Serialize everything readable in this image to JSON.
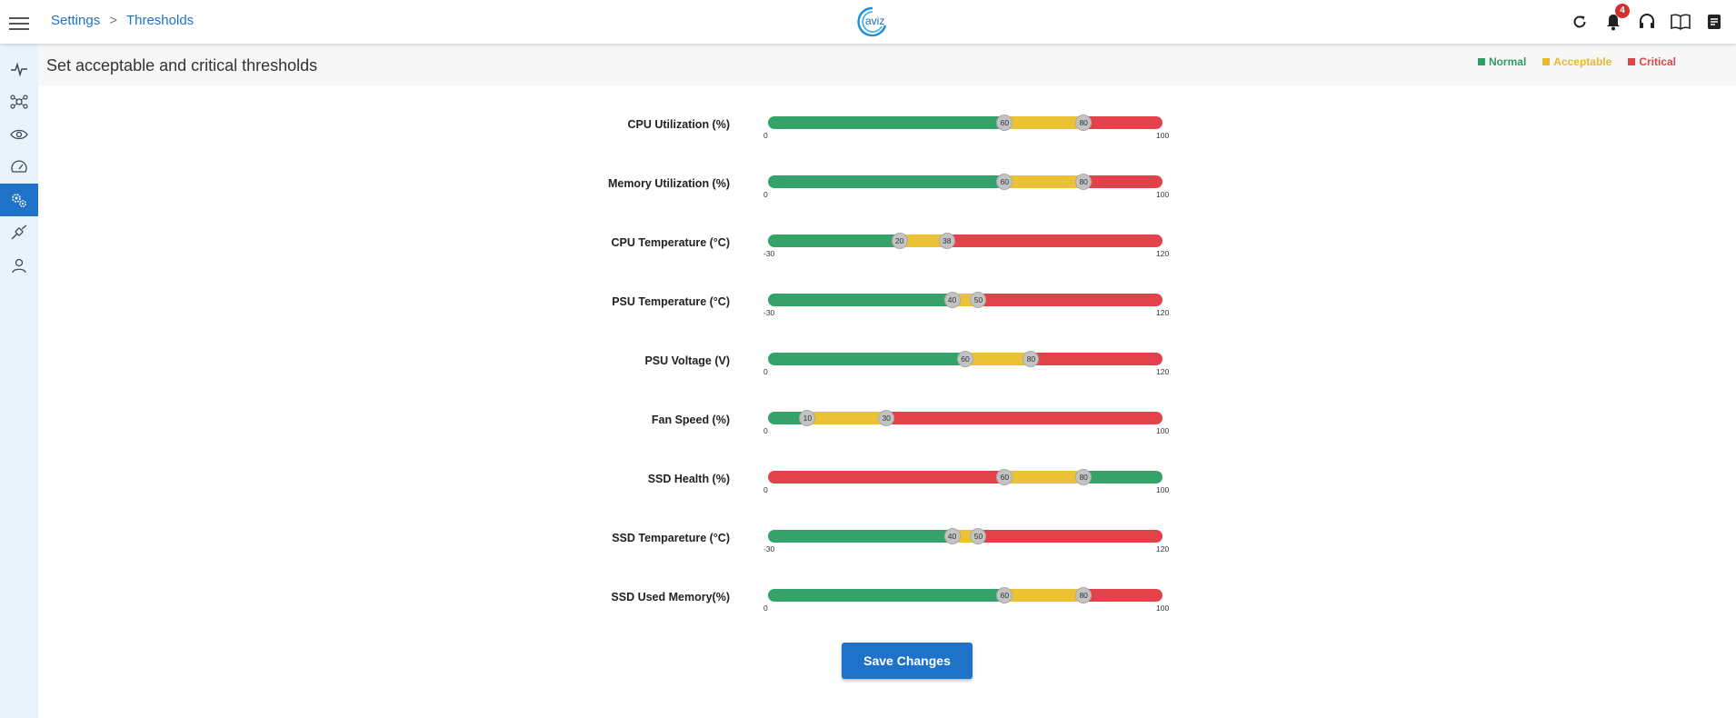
{
  "breadcrumb": {
    "parent": "Settings",
    "separator": ">",
    "current": "Thresholds"
  },
  "logo_text": "aviz",
  "notifications": {
    "count": "4"
  },
  "page": {
    "title": "Set acceptable and critical thresholds"
  },
  "legend": [
    {
      "label": "Normal",
      "color": "#2e9e63"
    },
    {
      "label": "Acceptable",
      "color": "#e8b92f"
    },
    {
      "label": "Critical",
      "color": "#e2434a"
    }
  ],
  "colors": {
    "green": "#35a26a",
    "yellow": "#ebc136",
    "red": "#e2434a",
    "accent": "#1e73c8"
  },
  "thresholds": [
    {
      "label": "CPU Utilization (%)",
      "min": "0",
      "max": "100",
      "low": 60,
      "high": 80,
      "inverted": false
    },
    {
      "label": "Memory Utilization (%)",
      "min": "0",
      "max": "100",
      "low": 60,
      "high": 80,
      "inverted": false
    },
    {
      "label": "CPU Temperature (°C)",
      "min": "-30",
      "max": "120",
      "low": 20,
      "high": 38,
      "inverted": false
    },
    {
      "label": "PSU Temperature (°C)",
      "min": "-30",
      "max": "120",
      "low": 40,
      "high": 50,
      "inverted": false
    },
    {
      "label": "PSU Voltage (V)",
      "min": "0",
      "max": "120",
      "low": 60,
      "high": 80,
      "inverted": false
    },
    {
      "label": "Fan Speed (%)",
      "min": "0",
      "max": "100",
      "low": 10,
      "high": 30,
      "inverted": false
    },
    {
      "label": "SSD Health (%)",
      "min": "0",
      "max": "100",
      "low": 60,
      "high": 80,
      "inverted": true
    },
    {
      "label": "SSD Tempareture (°C)",
      "min": "-30",
      "max": "120",
      "low": 40,
      "high": 50,
      "inverted": false
    },
    {
      "label": "SSD Used Memory(%)",
      "min": "0",
      "max": "100",
      "low": 60,
      "high": 80,
      "inverted": false
    }
  ],
  "save_label": "Save Changes"
}
